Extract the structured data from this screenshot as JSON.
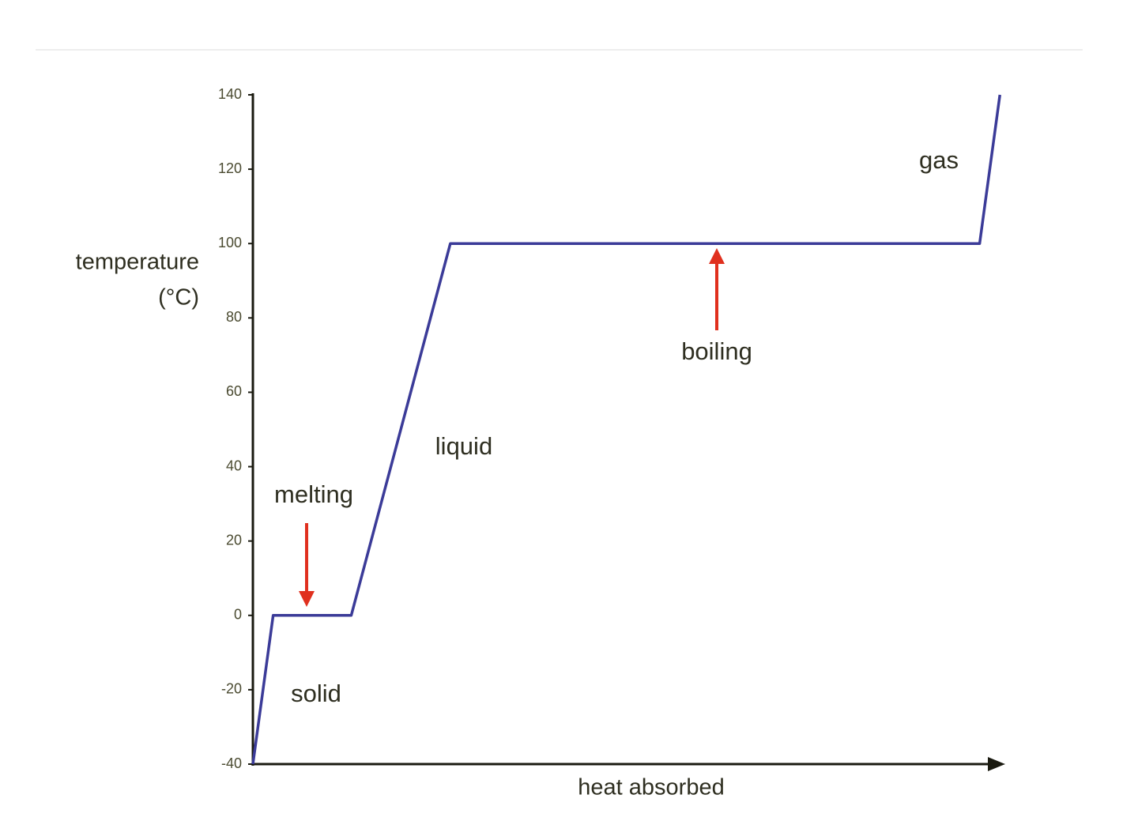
{
  "chart_data": {
    "type": "line",
    "x_label": "heat absorbed",
    "y_label": [
      "temperature",
      "(°C)"
    ],
    "x": [
      0,
      2.7,
      13.1,
      26.3,
      96.8,
      99.5
    ],
    "values": [
      -40,
      0,
      0,
      100,
      100,
      140
    ],
    "color": "#3b3b98",
    "xlim": [
      0,
      100
    ],
    "ylim": [
      -40,
      140
    ],
    "yticks": [
      -40,
      -20,
      0,
      20,
      40,
      60,
      80,
      100,
      120,
      140
    ],
    "annotations": [
      "solid",
      "melting",
      "liquid",
      "boiling",
      "gas"
    ]
  }
}
